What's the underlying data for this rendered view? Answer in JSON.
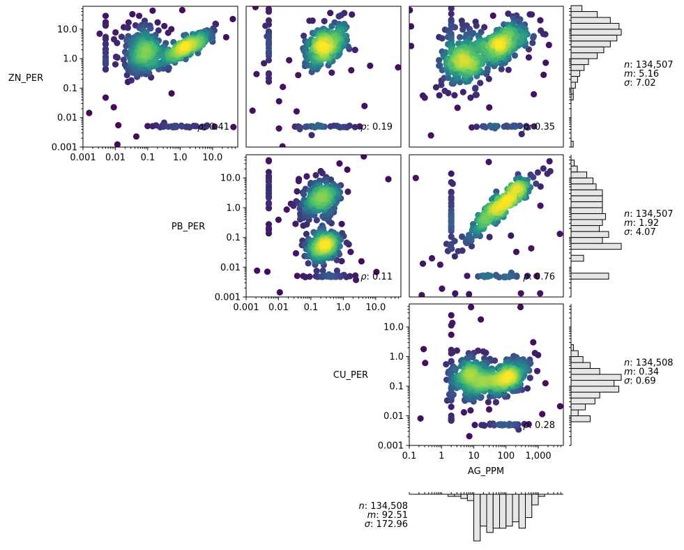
{
  "chart_data": {
    "type": "scatter",
    "title": "",
    "variables": [
      "AG_PPM",
      "CU_PER",
      "PB_PER",
      "ZN_PER"
    ],
    "layout": "lower-left corner plot: density-colored scatter matrix with marginal histograms on log axes",
    "axis_labels": {
      "zn": "ZN_PER",
      "pb": "PB_PER",
      "cu": "CU_PER",
      "ag": "AG_PPM"
    },
    "log_axes": {
      "percent_ticks": [
        "0.001",
        "0.01",
        "0.1",
        "1.0",
        "10.0"
      ],
      "percent_range": [
        0.001,
        60
      ],
      "ag_ticks": [
        "0.1",
        "1",
        "10",
        "100",
        "1,000"
      ],
      "ag_range": [
        0.1,
        6000
      ]
    },
    "panels": [
      {
        "x": "PB_PER",
        "y": "ZN_PER",
        "rho_label": "ρ",
        "rho": "0.41",
        "clusters": [
          {
            "cx": 1.5,
            "cy": 2.5,
            "sx": 0.45,
            "sy": 0.3,
            "corr": 0.85
          },
          {
            "cx": 0.08,
            "cy": 2.0,
            "sx": 0.35,
            "sy": 0.45,
            "corr": 0.1
          }
        ]
      },
      {
        "x": "CU_PER",
        "y": "ZN_PER",
        "rho_label": "ρ",
        "rho": "0.19",
        "clusters": [
          {
            "cx": 0.3,
            "cy": 3.0,
            "sx": 0.35,
            "sy": 0.4,
            "corr": 0.45
          }
        ]
      },
      {
        "x": "AG_PPM",
        "y": "ZN_PER",
        "rho_label": "ρ",
        "rho": "0.35",
        "clusters": [
          {
            "cx": 80,
            "cy": 3.0,
            "sx": 0.45,
            "sy": 0.4,
            "corr": 0.5
          },
          {
            "cx": 5,
            "cy": 1.0,
            "sx": 0.35,
            "sy": 0.5,
            "corr": 0.1
          }
        ]
      },
      {
        "x": "CU_PER",
        "y": "PB_PER",
        "rho_label": "ρ",
        "rho": "0.11",
        "clusters": [
          {
            "cx": 0.2,
            "cy": 2.0,
            "sx": 0.3,
            "sy": 0.35,
            "corr": 0.2
          },
          {
            "cx": 0.25,
            "cy": 0.05,
            "sx": 0.3,
            "sy": 0.3,
            "corr": 0.1
          }
        ]
      },
      {
        "x": "AG_PPM",
        "y": "PB_PER",
        "rho_label": "ρ",
        "rho": "0.76",
        "clusters": [
          {
            "cx": 60,
            "cy": 1.0,
            "sx": 0.6,
            "sy": 0.6,
            "corr": 0.93
          }
        ]
      },
      {
        "x": "AG_PPM",
        "y": "CU_PER",
        "rho_label": "ρ",
        "rho": "0.28",
        "clusters": [
          {
            "cx": 100,
            "cy": 0.2,
            "sx": 0.35,
            "sy": 0.3,
            "corr": 0.5
          },
          {
            "cx": 10,
            "cy": 0.2,
            "sx": 0.35,
            "sy": 0.35,
            "corr": 0.1
          }
        ]
      }
    ],
    "marginals": [
      {
        "variable": "ZN_PER",
        "n_label": "n",
        "n": "134,507",
        "m_label": "m",
        "m": "5.16",
        "s_label": "σ",
        "s": "7.02",
        "log_edges": [
          -3.0,
          -2.8,
          -2.6,
          -2.4,
          -2.2,
          -2.0,
          -1.8,
          -1.6,
          -1.4,
          -1.2,
          -1.0,
          -0.8,
          -0.6,
          -0.4,
          -0.2,
          0.0,
          0.2,
          0.4,
          0.6,
          0.8,
          1.0,
          1.2,
          1.4,
          1.6,
          1.8
        ],
        "counts": [
          1,
          0,
          0,
          0,
          0,
          0,
          0,
          0,
          1,
          1,
          2,
          3,
          4,
          6,
          8,
          12,
          15,
          18,
          21,
          23,
          22,
          18,
          12,
          5
        ]
      },
      {
        "variable": "PB_PER",
        "n_label": "n",
        "n": "134,507",
        "m_label": "m",
        "m": "1.92",
        "s_label": "σ",
        "s": "4.07",
        "log_edges": [
          -3.0,
          -2.8,
          -2.6,
          -2.4,
          -2.2,
          -2.0,
          -1.8,
          -1.6,
          -1.4,
          -1.2,
          -1.0,
          -0.8,
          -0.6,
          -0.4,
          -0.2,
          0.0,
          0.2,
          0.4,
          0.6,
          0.8,
          1.0,
          1.2,
          1.4,
          1.6,
          1.8
        ],
        "counts": [
          0,
          0,
          0,
          12,
          0,
          0,
          4,
          0,
          16,
          10,
          12,
          9,
          10,
          11,
          10,
          10,
          10,
          10,
          8,
          7,
          5,
          2,
          1,
          0
        ]
      },
      {
        "variable": "CU_PER",
        "n_label": "n",
        "n": "134,508",
        "m_label": "m",
        "m": "0.34",
        "s_label": "σ",
        "s": "0.69",
        "log_edges": [
          -3.0,
          -2.8,
          -2.6,
          -2.4,
          -2.2,
          -2.0,
          -1.8,
          -1.6,
          -1.4,
          -1.2,
          -1.0,
          -0.8,
          -0.6,
          -0.4,
          -0.2,
          0.0,
          0.2,
          0.4,
          0.6,
          0.8,
          1.0,
          1.2,
          1.4,
          1.6,
          1.8
        ],
        "counts": [
          0,
          0,
          0,
          0,
          8,
          3,
          6,
          10,
          12,
          20,
          18,
          21,
          12,
          8,
          5,
          3,
          1,
          0,
          0,
          0,
          0,
          0,
          0,
          0
        ]
      },
      {
        "variable": "AG_PPM",
        "n_label": "n",
        "n": "134,508",
        "m_label": "m",
        "m": "92.51",
        "s_label": "σ",
        "s": "172.96",
        "log_edges": [
          -1.0,
          -0.8,
          -0.6,
          -0.4,
          -0.2,
          0.0,
          0.2,
          0.4,
          0.6,
          0.8,
          1.0,
          1.2,
          1.4,
          1.6,
          1.8,
          2.0,
          2.2,
          2.4,
          2.6,
          2.8,
          3.0,
          3.2,
          3.4,
          3.6,
          3.8
        ],
        "counts": [
          0,
          0,
          0,
          0,
          0,
          0,
          1,
          1,
          2,
          3,
          22,
          15,
          18,
          16,
          16,
          15,
          13,
          16,
          11,
          5,
          1,
          0,
          0,
          0
        ]
      }
    ],
    "colormap": [
      "#440154",
      "#3b528b",
      "#21918c",
      "#5ec962",
      "#fde725"
    ],
    "histogram_fill": "#e6e6e6",
    "histogram_edge": "#000000"
  }
}
